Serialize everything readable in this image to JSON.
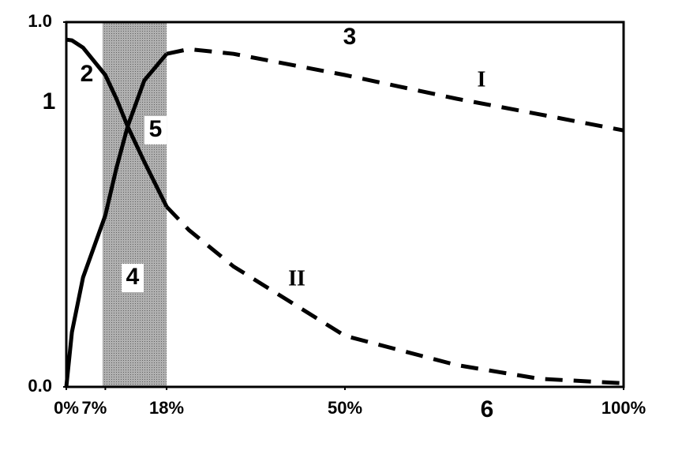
{
  "chart_data": {
    "type": "line",
    "x": [
      0,
      1,
      3,
      7,
      9,
      11,
      14,
      18,
      22,
      30,
      50,
      70,
      85,
      100
    ],
    "series": [
      {
        "name": "I",
        "color": "#000000",
        "values": [
          0,
          0.15,
          0.3,
          0.47,
          0.6,
          0.714,
          0.84,
          0.913,
          0.926,
          0.913,
          0.855,
          0.79,
          0.747,
          0.703
        ]
      },
      {
        "name": "II",
        "color": "#000000",
        "values": [
          0.952,
          0.95,
          0.93,
          0.855,
          0.79,
          0.714,
          0.617,
          0.494,
          0.43,
          0.33,
          0.14,
          0.06,
          0.022,
          0.01
        ]
      }
    ],
    "band": [
      6.5,
      18
    ],
    "band_color": "#a0a0a0",
    "xlim": [
      0,
      100
    ],
    "ylim": [
      0,
      1
    ],
    "xticks": [
      {
        "value": 0,
        "label": "0%"
      },
      {
        "value": 7,
        "label": "7%"
      },
      {
        "value": 18,
        "label": "18%"
      },
      {
        "value": 50,
        "label": "50%"
      },
      {
        "value": 100,
        "label": "100%"
      }
    ],
    "yticks": [
      {
        "value": 0,
        "label": "0.0"
      },
      {
        "value": 1,
        "label": "1.0"
      }
    ],
    "annotations": [
      "1",
      "2",
      "3",
      "4",
      "5",
      "6"
    ]
  }
}
